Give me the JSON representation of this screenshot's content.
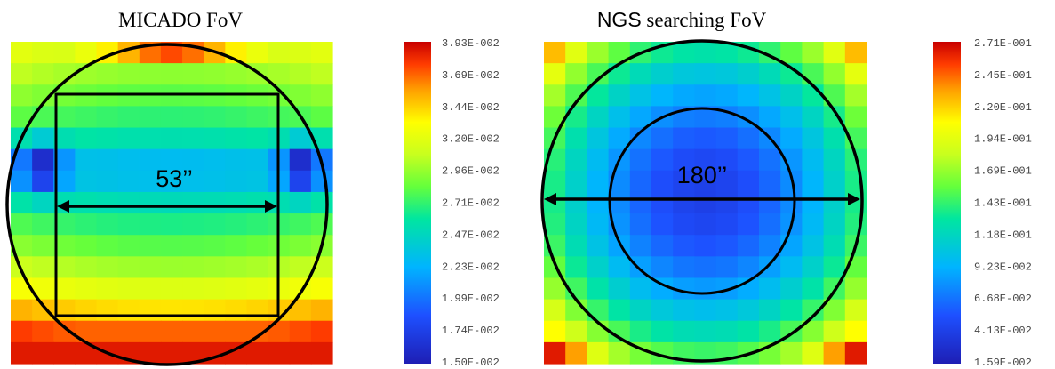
{
  "chart_data": [
    {
      "type": "heatmap",
      "title": "MICADO FoV",
      "grid_size": [
        15,
        15
      ],
      "pattern": "micado",
      "colorbar": {
        "min": 0.015,
        "max": 0.0393,
        "ticks": [
          "3.93E-002",
          "3.69E-002",
          "3.44E-002",
          "3.20E-002",
          "2.96E-002",
          "2.71E-002",
          "2.47E-002",
          "2.23E-002",
          "1.99E-002",
          "1.74E-002",
          "1.50E-002"
        ]
      },
      "annotations": {
        "square_label": "53’’",
        "shapes": [
          "circle",
          "square",
          "double-arrow"
        ]
      }
    },
    {
      "type": "heatmap",
      "title_prefix": "NGS",
      "title_rest": " searching  FoV",
      "grid_size": [
        15,
        15
      ],
      "pattern": "ngs",
      "colorbar": {
        "min": 0.0159,
        "max": 0.271,
        "ticks": [
          "2.71E-001",
          "2.45E-001",
          "2.20E-001",
          "1.94E-001",
          "1.69E-001",
          "1.43E-001",
          "1.18E-001",
          "9.23E-002",
          "6.68E-002",
          "4.13E-002",
          "1.59E-002"
        ]
      },
      "annotations": {
        "diameter_label": "180’’",
        "shapes": [
          "outer-circle",
          "inner-circle",
          "double-arrow"
        ]
      }
    }
  ]
}
